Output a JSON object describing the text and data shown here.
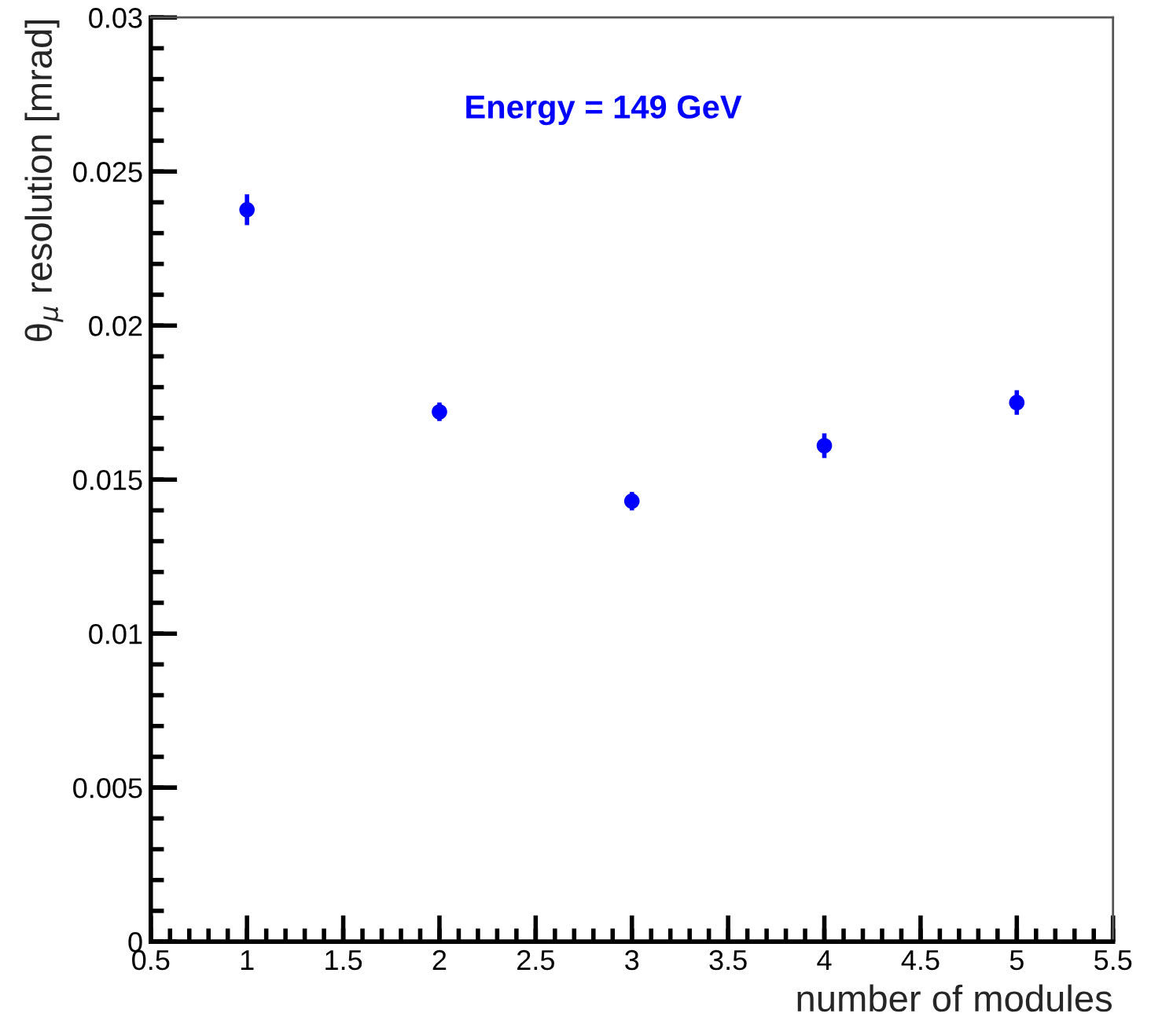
{
  "chart_data": {
    "type": "scatter",
    "xlabel": "number of modules",
    "ylabel": "θ$_{μ}$ resolution [mrad]",
    "annotations": [
      "Energy = 149 GeV"
    ],
    "x": [
      1,
      2,
      3,
      4,
      5
    ],
    "series": [
      {
        "color": "#0000ff",
        "values": [
          0.02376,
          0.0172,
          0.0143,
          0.0161,
          0.0175
        ],
        "errors": [
          0.0005,
          0.0003,
          0.0003,
          0.0004,
          0.0004
        ]
      }
    ],
    "marker": "circle",
    "xlim": [
      0.5,
      5.5
    ],
    "xticks": [
      0.5,
      1,
      1.5,
      2,
      2.5,
      3,
      3.5,
      4,
      4.5,
      5,
      5.5
    ],
    "ylim": [
      0,
      0.03
    ],
    "yticks": [
      0,
      0.005,
      0.01,
      0.015,
      0.02,
      0.025,
      0.03
    ],
    "grid": false,
    "legend": false
  }
}
